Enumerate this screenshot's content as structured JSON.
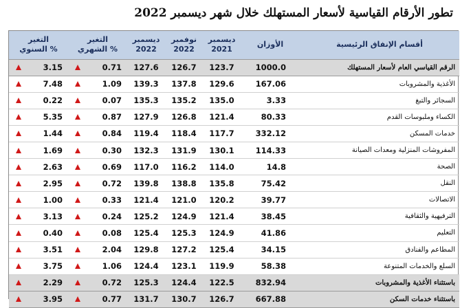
{
  "title": "تطور الأرقام القياسية لأسعار المستهلك خلال شهر ديسمبر 2022",
  "columns": {
    "annual": [
      "التغير",
      "السنوي %"
    ],
    "monthly": [
      "التغير",
      "الشهري %"
    ],
    "dec2022": [
      "ديسمبر",
      "2022"
    ],
    "nov2022": [
      "نوفمبر",
      "2022"
    ],
    "dec2021": [
      "ديسمبر",
      "2021"
    ],
    "weights": "الأوزان",
    "category": "أقسام الإنفاق الرئيسية"
  },
  "arrow_color": "#d01818",
  "arrow_icon": "triangle-up",
  "rows": [
    {
      "category": "الرقم القياسي العام لأسعار المستهلك",
      "weight": "1000.0",
      "dec2021": "123.7",
      "nov2022": "126.7",
      "dec2022": "127.6",
      "monthly": "0.71",
      "annual": "3.15",
      "highlight": true
    },
    {
      "category": "الأغذية والمشروبات",
      "weight": "167.06",
      "dec2021": "129.6",
      "nov2022": "137.8",
      "dec2022": "139.3",
      "monthly": "1.09",
      "annual": "7.48",
      "highlight": false
    },
    {
      "category": "السجائر والتبغ",
      "weight": "3.33",
      "dec2021": "135.0",
      "nov2022": "135.2",
      "dec2022": "135.3",
      "monthly": "0.07",
      "annual": "0.22",
      "highlight": false
    },
    {
      "category": "الكساء وملبوسات القدم",
      "weight": "80.33",
      "dec2021": "121.4",
      "nov2022": "126.8",
      "dec2022": "127.9",
      "monthly": "0.87",
      "annual": "5.35",
      "highlight": false
    },
    {
      "category": "خدمات المسكن",
      "weight": "332.12",
      "dec2021": "117.7",
      "nov2022": "118.4",
      "dec2022": "119.4",
      "monthly": "0.84",
      "annual": "1.44",
      "highlight": false
    },
    {
      "category": "المفروشات المنزلية ومعدات الصيانة",
      "weight": "114.33",
      "dec2021": "130.1",
      "nov2022": "131.9",
      "dec2022": "132.3",
      "monthly": "0.30",
      "annual": "1.69",
      "highlight": false
    },
    {
      "category": "الصحة",
      "weight": "14.8",
      "dec2021": "114.0",
      "nov2022": "116.2",
      "dec2022": "117.0",
      "monthly": "0.69",
      "annual": "2.63",
      "highlight": false
    },
    {
      "category": "النقل",
      "weight": "75.42",
      "dec2021": "135.8",
      "nov2022": "138.8",
      "dec2022": "139.8",
      "monthly": "0.72",
      "annual": "2.95",
      "highlight": false
    },
    {
      "category": "الاتصالات",
      "weight": "39.77",
      "dec2021": "120.2",
      "nov2022": "121.0",
      "dec2022": "121.4",
      "monthly": "0.33",
      "annual": "1.00",
      "highlight": false
    },
    {
      "category": "الترفيهية والثقافية",
      "weight": "38.45",
      "dec2021": "121.4",
      "nov2022": "124.9",
      "dec2022": "125.2",
      "monthly": "0.24",
      "annual": "3.13",
      "highlight": false
    },
    {
      "category": "التعليم",
      "weight": "41.86",
      "dec2021": "124.9",
      "nov2022": "125.3",
      "dec2022": "125.4",
      "monthly": "0.08",
      "annual": "0.40",
      "highlight": false
    },
    {
      "category": "المطاعم والفنادق",
      "weight": "34.15",
      "dec2021": "125.4",
      "nov2022": "127.2",
      "dec2022": "129.8",
      "monthly": "2.04",
      "annual": "3.51",
      "highlight": false
    },
    {
      "category": "السلع والخدمات المتنوعة",
      "weight": "58.38",
      "dec2021": "119.9",
      "nov2022": "123.1",
      "dec2022": "124.4",
      "monthly": "1.06",
      "annual": "3.75",
      "highlight": false
    },
    {
      "category": "باستثناء الأغذية والمشروبات",
      "weight": "832.94",
      "dec2021": "122.5",
      "nov2022": "124.4",
      "dec2022": "125.3",
      "monthly": "0.72",
      "annual": "2.29",
      "highlight": true
    },
    {
      "category": "باستثناء خدمات السكن",
      "weight": "667.88",
      "dec2021": "126.7",
      "nov2022": "130.7",
      "dec2022": "131.7",
      "monthly": "0.77",
      "annual": "3.95",
      "highlight": true
    }
  ]
}
